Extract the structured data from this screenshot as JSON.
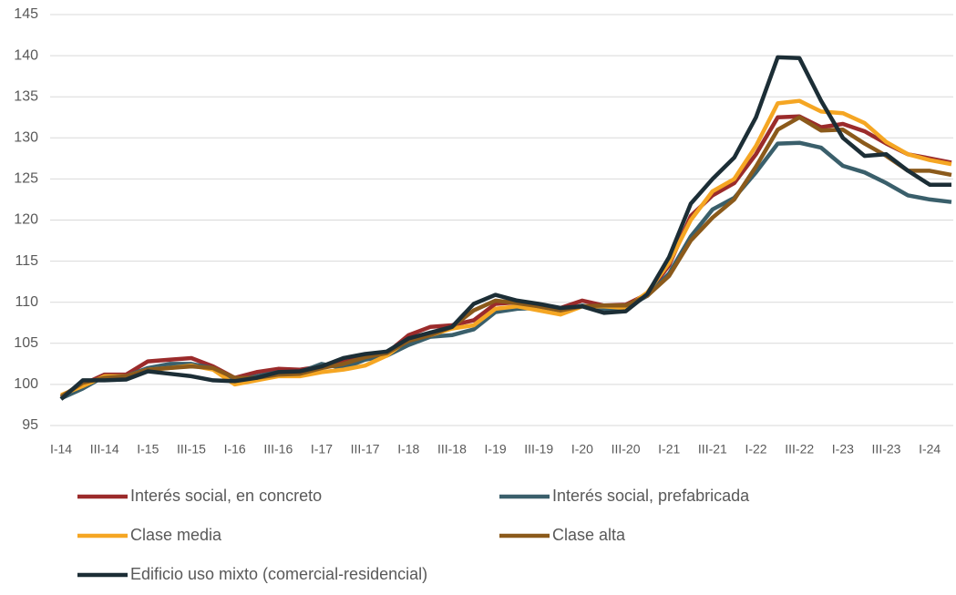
{
  "chart_data": {
    "type": "line",
    "categories": [
      "I-14",
      null,
      "III-14",
      null,
      "I-15",
      null,
      "III-15",
      null,
      "I-16",
      null,
      "III-16",
      null,
      "I-17",
      null,
      "III-17",
      null,
      "I-18",
      null,
      "III-18",
      null,
      "I-19",
      null,
      "III-19",
      null,
      "I-20",
      null,
      "III-20",
      null,
      "I-21",
      null,
      "III-21",
      null,
      "I-22",
      null,
      "III-22",
      null,
      "I-23",
      null,
      "III-23",
      null,
      "I-24",
      null
    ],
    "ylim": [
      95,
      145
    ],
    "yticks": [
      95,
      100,
      105,
      110,
      115,
      120,
      125,
      130,
      135,
      140,
      145
    ],
    "grid": true,
    "legend": "bottom",
    "series": [
      {
        "name": "Interés social, en concreto",
        "color": "#9b2b2b",
        "values": [
          98.5,
          100.0,
          101.2,
          101.2,
          102.8,
          103.0,
          103.2,
          102.2,
          100.8,
          101.5,
          101.9,
          101.8,
          102.2,
          102.7,
          103.3,
          103.8,
          106.0,
          107.0,
          107.2,
          107.8,
          109.8,
          110.0,
          109.5,
          109.3,
          110.2,
          109.6,
          109.7,
          111.0,
          114.5,
          120.5,
          123.0,
          124.5,
          128.0,
          132.5,
          132.6,
          131.3,
          131.7,
          130.8,
          129.3,
          128.0,
          127.5,
          127.0
        ]
      },
      {
        "name": "Interés social, prefabricada",
        "color": "#3a5f6b",
        "values": [
          98.3,
          99.5,
          101.0,
          101.0,
          102.0,
          102.5,
          102.5,
          102.0,
          100.5,
          101.0,
          101.5,
          101.5,
          102.5,
          102.0,
          103.0,
          103.5,
          104.8,
          105.8,
          106.0,
          106.7,
          108.8,
          109.2,
          109.3,
          109.0,
          109.6,
          109.2,
          109.3,
          110.8,
          113.5,
          118.0,
          121.3,
          122.7,
          125.8,
          129.3,
          129.4,
          128.8,
          126.6,
          125.8,
          124.5,
          123.0,
          122.5,
          122.2
        ]
      },
      {
        "name": "Clase media",
        "color": "#f5a623",
        "values": [
          98.7,
          99.8,
          101.0,
          101.0,
          101.8,
          102.0,
          102.3,
          101.8,
          100.0,
          100.5,
          101.0,
          101.0,
          101.5,
          101.8,
          102.3,
          103.5,
          105.5,
          106.0,
          106.8,
          107.2,
          109.2,
          109.5,
          109.0,
          108.5,
          109.5,
          109.5,
          109.3,
          111.2,
          114.8,
          120.0,
          123.5,
          125.0,
          129.0,
          134.2,
          134.5,
          133.2,
          133.0,
          131.8,
          129.5,
          128.0,
          127.3,
          126.8
        ]
      },
      {
        "name": "Clase alta",
        "color": "#8b5a1b",
        "values": [
          98.5,
          100.2,
          100.8,
          101.0,
          101.8,
          102.0,
          102.2,
          102.0,
          100.8,
          100.8,
          101.2,
          101.3,
          102.0,
          102.5,
          103.3,
          103.8,
          105.3,
          106.0,
          107.0,
          109.0,
          110.2,
          109.9,
          109.5,
          109.0,
          109.5,
          109.6,
          109.6,
          110.8,
          113.2,
          117.5,
          120.3,
          122.5,
          126.5,
          131.0,
          132.5,
          130.9,
          131.0,
          129.3,
          127.8,
          126.0,
          126.0,
          125.5
        ]
      },
      {
        "name": "Edificio uso mixto (comercial-residencial)",
        "color": "#1c2e36",
        "values": [
          98.2,
          100.5,
          100.5,
          100.6,
          101.6,
          101.3,
          101.0,
          100.5,
          100.4,
          100.8,
          101.5,
          101.6,
          102.2,
          103.2,
          103.7,
          104.0,
          105.6,
          106.3,
          107.0,
          109.8,
          110.9,
          110.2,
          109.8,
          109.3,
          109.5,
          108.7,
          108.9,
          111.0,
          115.5,
          122.0,
          125.0,
          127.6,
          132.5,
          139.8,
          139.7,
          134.5,
          130.0,
          127.8,
          128.0,
          126.0,
          124.3,
          124.3
        ]
      }
    ]
  }
}
